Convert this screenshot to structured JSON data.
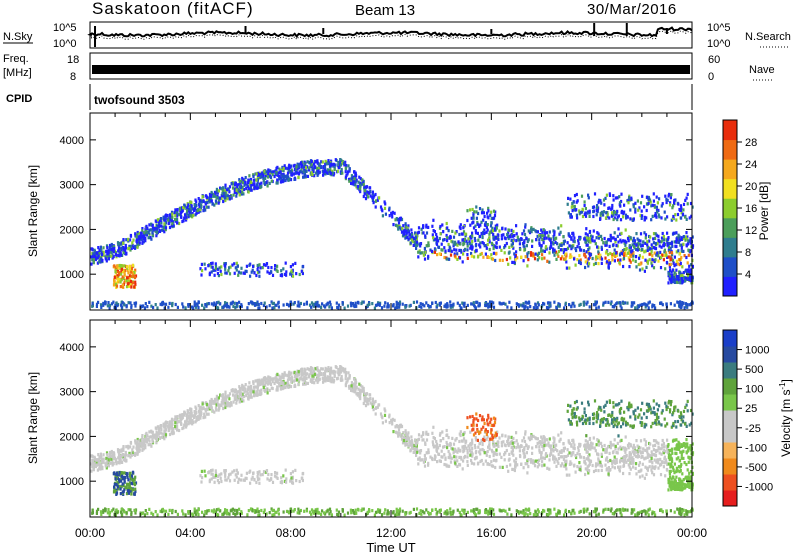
{
  "header": {
    "station": "Saskatoon (fitACF)",
    "beam": "Beam 13",
    "date": "30/Mar/2016"
  },
  "strips": {
    "nsky_label": "N.Sky",
    "nsky_top": "10^5",
    "nsky_bottom": "10^0",
    "nsearch_label": "N.Search",
    "nsearch_top": "10^5",
    "nsearch_bottom": "10^0",
    "freq_label_1": "Freq.",
    "freq_label_2": "[MHz]",
    "freq_top": "18",
    "freq_bottom": "8",
    "nave_label": "Nave",
    "nave_top": "60",
    "nave_bottom": "0",
    "cpid_label": "CPID",
    "cpid_value": "twofsound 3503"
  },
  "colors": {
    "power": [
      "#2020ff",
      "#1f4fc8",
      "#2f7d8e",
      "#4b9e5a",
      "#8ccd2e",
      "#f2e020",
      "#f5a81d",
      "#ef6a13",
      "#e82d0c"
    ],
    "velocity": [
      "#e61e1e",
      "#ee5020",
      "#f08a1c",
      "#f6b35a",
      "#c8c8c8",
      "#c8c8c8",
      "#79c64a",
      "#5fa33b",
      "#3b7c7f",
      "#274aa0",
      "#1a3ec8"
    ]
  },
  "chart_data": [
    {
      "type": "heatmap",
      "title": "Power",
      "xlabel": "Time UT",
      "ylabel": "Slant Range [km]",
      "x_ticks": [
        "00:00",
        "04:00",
        "08:00",
        "12:00",
        "16:00",
        "20:00",
        "00:00"
      ],
      "xlim_hours": [
        0,
        24
      ],
      "y_ticks": [
        1000,
        2000,
        3000,
        4000
      ],
      "ylim": [
        200,
        4600
      ],
      "colorbar_label": "Power [dB]",
      "colorbar_ticks": [
        4,
        8,
        12,
        16,
        20,
        24,
        28
      ],
      "colorbar_range": [
        0,
        32
      ]
    },
    {
      "type": "heatmap",
      "title": "Velocity",
      "xlabel": "Time UT",
      "ylabel": "Slant Range [km]",
      "x_ticks": [
        "00:00",
        "04:00",
        "08:00",
        "12:00",
        "16:00",
        "20:00",
        "00:00"
      ],
      "xlim_hours": [
        0,
        24
      ],
      "y_ticks": [
        1000,
        2000,
        3000,
        4000
      ],
      "ylim": [
        200,
        4600
      ],
      "colorbar_label": "Velocity [m s^-1]",
      "colorbar_ticks": [
        "-1000",
        "-500",
        "-100",
        "-25",
        "25",
        "100",
        "500",
        "1000"
      ]
    }
  ],
  "axis": {
    "xlabel": "Time UT",
    "xticks": [
      "00:00",
      "04:00",
      "08:00",
      "12:00",
      "16:00",
      "20:00",
      "00:00"
    ],
    "yticks": [
      "1000",
      "2000",
      "3000",
      "4000"
    ],
    "ylabel": "Slant Range [km]",
    "power_cb_label": "Power [dB]",
    "power_cb_ticks": [
      "4",
      "8",
      "12",
      "16",
      "20",
      "24",
      "28"
    ],
    "vel_cb_label": "Velocity [m s",
    "vel_cb_sup": "-1",
    "vel_cb_close": "]",
    "vel_cb_ticks": [
      "1000",
      "500",
      "100",
      "25",
      "-25",
      "-100",
      "-500",
      "-1000"
    ]
  }
}
